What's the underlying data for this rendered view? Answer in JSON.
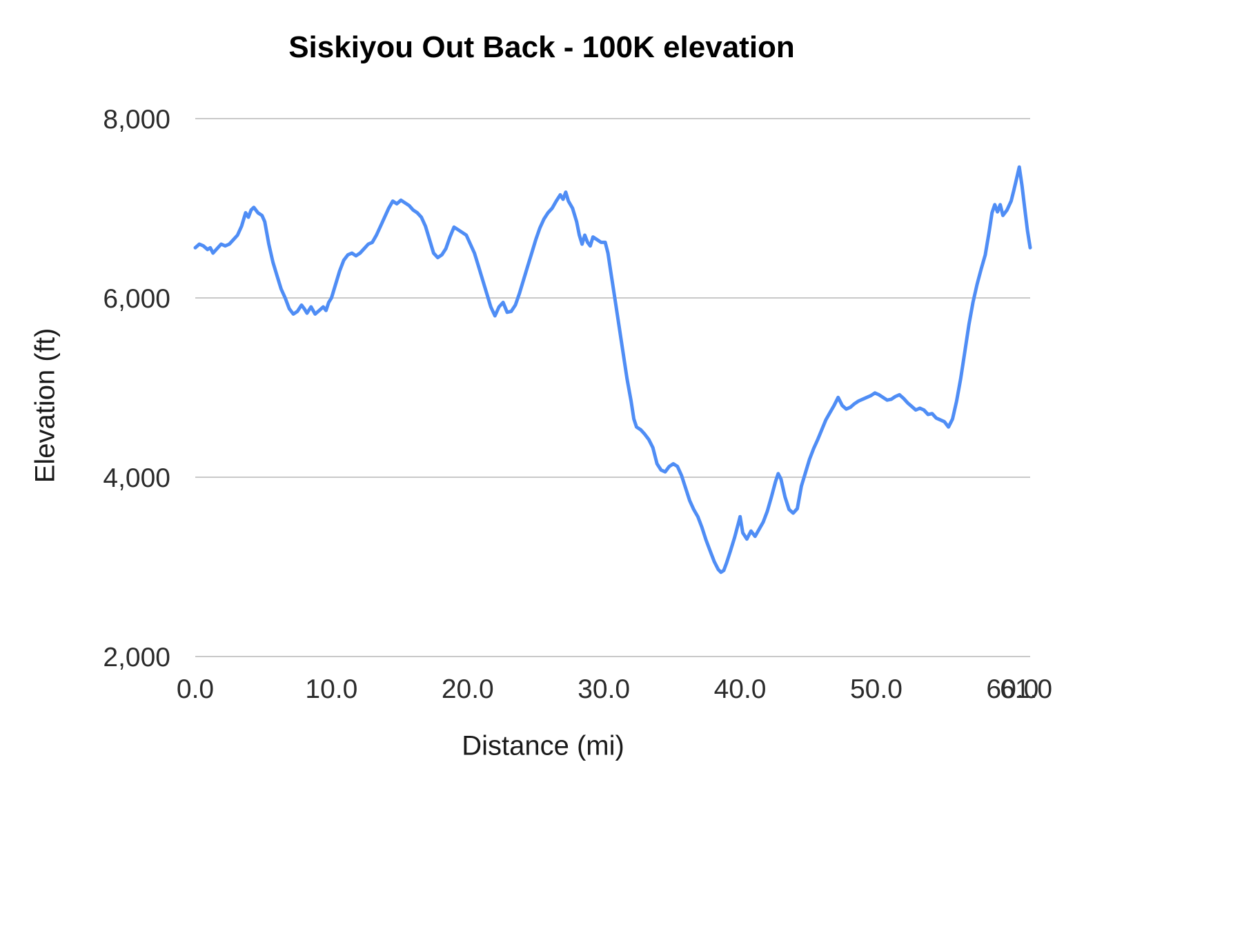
{
  "chart_data": {
    "type": "line",
    "title": "Siskiyou Out Back - 100K elevation",
    "xlabel": "Distance (mi)",
    "ylabel": "Elevation (ft)",
    "xlim": [
      0,
      61.3
    ],
    "ylim": [
      2000,
      8000
    ],
    "x_ticks": [
      0,
      10,
      20,
      30,
      40,
      50,
      60,
      61
    ],
    "x_tick_labels": [
      "0.0",
      "10.0",
      "20.0",
      "30.0",
      "40.0",
      "50.0",
      "60.0",
      "61.0"
    ],
    "y_ticks": [
      2000,
      4000,
      6000,
      8000
    ],
    "y_tick_labels": [
      "2,000",
      "4,000",
      "6,000",
      "8,000"
    ],
    "grid": true,
    "legend": "none",
    "line_color": "#4f8df5",
    "grid_color": "#c9c9c9",
    "series": [
      {
        "name": "Elevation",
        "points": [
          [
            0,
            6560
          ],
          [
            0.3,
            6600
          ],
          [
            0.6,
            6580
          ],
          [
            0.9,
            6540
          ],
          [
            1.1,
            6560
          ],
          [
            1.3,
            6500
          ],
          [
            1.6,
            6550
          ],
          [
            1.9,
            6600
          ],
          [
            2.2,
            6580
          ],
          [
            2.5,
            6600
          ],
          [
            2.8,
            6650
          ],
          [
            3.1,
            6700
          ],
          [
            3.4,
            6800
          ],
          [
            3.7,
            6950
          ],
          [
            3.9,
            6900
          ],
          [
            4.1,
            6980
          ],
          [
            4.3,
            7010
          ],
          [
            4.6,
            6950
          ],
          [
            4.9,
            6920
          ],
          [
            5.1,
            6850
          ],
          [
            5.4,
            6600
          ],
          [
            5.7,
            6400
          ],
          [
            6,
            6250
          ],
          [
            6.3,
            6100
          ],
          [
            6.6,
            6000
          ],
          [
            6.9,
            5880
          ],
          [
            7.2,
            5820
          ],
          [
            7.5,
            5850
          ],
          [
            7.8,
            5920
          ],
          [
            8,
            5880
          ],
          [
            8.2,
            5830
          ],
          [
            8.5,
            5900
          ],
          [
            8.8,
            5820
          ],
          [
            9.1,
            5860
          ],
          [
            9.4,
            5900
          ],
          [
            9.6,
            5860
          ],
          [
            9.8,
            5950
          ],
          [
            10,
            6000
          ],
          [
            10.3,
            6150
          ],
          [
            10.6,
            6300
          ],
          [
            10.9,
            6420
          ],
          [
            11.2,
            6480
          ],
          [
            11.5,
            6500
          ],
          [
            11.8,
            6470
          ],
          [
            12.1,
            6500
          ],
          [
            12.4,
            6550
          ],
          [
            12.7,
            6600
          ],
          [
            13,
            6620
          ],
          [
            13.3,
            6700
          ],
          [
            13.6,
            6800
          ],
          [
            13.9,
            6900
          ],
          [
            14.2,
            7000
          ],
          [
            14.5,
            7080
          ],
          [
            14.8,
            7050
          ],
          [
            15.1,
            7090
          ],
          [
            15.4,
            7060
          ],
          [
            15.7,
            7030
          ],
          [
            16,
            6980
          ],
          [
            16.3,
            6950
          ],
          [
            16.6,
            6900
          ],
          [
            16.9,
            6800
          ],
          [
            17.2,
            6650
          ],
          [
            17.5,
            6500
          ],
          [
            17.8,
            6450
          ],
          [
            18.1,
            6480
          ],
          [
            18.4,
            6550
          ],
          [
            18.7,
            6680
          ],
          [
            19,
            6790
          ],
          [
            19.3,
            6760
          ],
          [
            19.6,
            6730
          ],
          [
            19.9,
            6700
          ],
          [
            20.2,
            6600
          ],
          [
            20.5,
            6500
          ],
          [
            20.8,
            6350
          ],
          [
            21.1,
            6200
          ],
          [
            21.4,
            6050
          ],
          [
            21.7,
            5900
          ],
          [
            22,
            5800
          ],
          [
            22.3,
            5900
          ],
          [
            22.6,
            5950
          ],
          [
            22.9,
            5840
          ],
          [
            23.2,
            5850
          ],
          [
            23.5,
            5920
          ],
          [
            23.8,
            6050
          ],
          [
            24.1,
            6200
          ],
          [
            24.4,
            6350
          ],
          [
            24.7,
            6500
          ],
          [
            25,
            6650
          ],
          [
            25.3,
            6780
          ],
          [
            25.6,
            6880
          ],
          [
            25.9,
            6950
          ],
          [
            26.2,
            7000
          ],
          [
            26.5,
            7080
          ],
          [
            26.8,
            7150
          ],
          [
            27,
            7100
          ],
          [
            27.2,
            7180
          ],
          [
            27.4,
            7080
          ],
          [
            27.7,
            7000
          ],
          [
            28,
            6850
          ],
          [
            28.2,
            6700
          ],
          [
            28.4,
            6600
          ],
          [
            28.6,
            6700
          ],
          [
            28.8,
            6620
          ],
          [
            29,
            6580
          ],
          [
            29.2,
            6680
          ],
          [
            29.5,
            6650
          ],
          [
            29.8,
            6620
          ],
          [
            30.1,
            6620
          ],
          [
            30.3,
            6500
          ],
          [
            30.5,
            6300
          ],
          [
            30.8,
            6000
          ],
          [
            31.1,
            5700
          ],
          [
            31.4,
            5400
          ],
          [
            31.7,
            5100
          ],
          [
            32,
            4850
          ],
          [
            32.2,
            4650
          ],
          [
            32.4,
            4560
          ],
          [
            32.7,
            4530
          ],
          [
            33,
            4480
          ],
          [
            33.3,
            4420
          ],
          [
            33.6,
            4330
          ],
          [
            33.9,
            4150
          ],
          [
            34.2,
            4080
          ],
          [
            34.5,
            4060
          ],
          [
            34.8,
            4120
          ],
          [
            35.1,
            4150
          ],
          [
            35.4,
            4120
          ],
          [
            35.7,
            4020
          ],
          [
            36,
            3880
          ],
          [
            36.3,
            3740
          ],
          [
            36.6,
            3640
          ],
          [
            36.9,
            3560
          ],
          [
            37.2,
            3440
          ],
          [
            37.5,
            3300
          ],
          [
            37.8,
            3180
          ],
          [
            38.1,
            3060
          ],
          [
            38.4,
            2970
          ],
          [
            38.6,
            2940
          ],
          [
            38.8,
            2960
          ],
          [
            39,
            3040
          ],
          [
            39.3,
            3180
          ],
          [
            39.6,
            3330
          ],
          [
            39.9,
            3500
          ],
          [
            40,
            3560
          ],
          [
            40.2,
            3380
          ],
          [
            40.5,
            3310
          ],
          [
            40.8,
            3400
          ],
          [
            41.1,
            3340
          ],
          [
            41.4,
            3420
          ],
          [
            41.7,
            3500
          ],
          [
            42,
            3620
          ],
          [
            42.3,
            3780
          ],
          [
            42.6,
            3950
          ],
          [
            42.8,
            4040
          ],
          [
            43,
            3980
          ],
          [
            43.3,
            3780
          ],
          [
            43.6,
            3640
          ],
          [
            43.9,
            3600
          ],
          [
            44.2,
            3650
          ],
          [
            44.5,
            3900
          ],
          [
            44.8,
            4050
          ],
          [
            45.1,
            4200
          ],
          [
            45.4,
            4320
          ],
          [
            45.7,
            4420
          ],
          [
            46,
            4530
          ],
          [
            46.3,
            4640
          ],
          [
            46.6,
            4720
          ],
          [
            46.9,
            4800
          ],
          [
            47.2,
            4890
          ],
          [
            47.5,
            4800
          ],
          [
            47.8,
            4760
          ],
          [
            48.1,
            4780
          ],
          [
            48.4,
            4820
          ],
          [
            48.7,
            4850
          ],
          [
            49,
            4870
          ],
          [
            49.3,
            4890
          ],
          [
            49.6,
            4910
          ],
          [
            49.9,
            4940
          ],
          [
            50.2,
            4920
          ],
          [
            50.5,
            4890
          ],
          [
            50.8,
            4860
          ],
          [
            51.1,
            4870
          ],
          [
            51.4,
            4900
          ],
          [
            51.7,
            4920
          ],
          [
            52,
            4880
          ],
          [
            52.3,
            4830
          ],
          [
            52.6,
            4790
          ],
          [
            52.9,
            4750
          ],
          [
            53.2,
            4770
          ],
          [
            53.5,
            4750
          ],
          [
            53.8,
            4700
          ],
          [
            54.1,
            4710
          ],
          [
            54.4,
            4660
          ],
          [
            54.7,
            4640
          ],
          [
            55,
            4620
          ],
          [
            55.3,
            4560
          ],
          [
            55.6,
            4650
          ],
          [
            55.9,
            4850
          ],
          [
            56.2,
            5100
          ],
          [
            56.5,
            5400
          ],
          [
            56.8,
            5700
          ],
          [
            57.1,
            5950
          ],
          [
            57.4,
            6150
          ],
          [
            57.7,
            6320
          ],
          [
            58,
            6480
          ],
          [
            58.3,
            6750
          ],
          [
            58.5,
            6950
          ],
          [
            58.7,
            7040
          ],
          [
            58.9,
            6960
          ],
          [
            59.1,
            7040
          ],
          [
            59.3,
            6920
          ],
          [
            59.6,
            6980
          ],
          [
            59.9,
            7080
          ],
          [
            60.1,
            7200
          ],
          [
            60.3,
            7330
          ],
          [
            60.5,
            7460
          ],
          [
            60.7,
            7250
          ],
          [
            60.9,
            7000
          ],
          [
            61.1,
            6750
          ],
          [
            61.3,
            6560
          ]
        ]
      }
    ]
  }
}
